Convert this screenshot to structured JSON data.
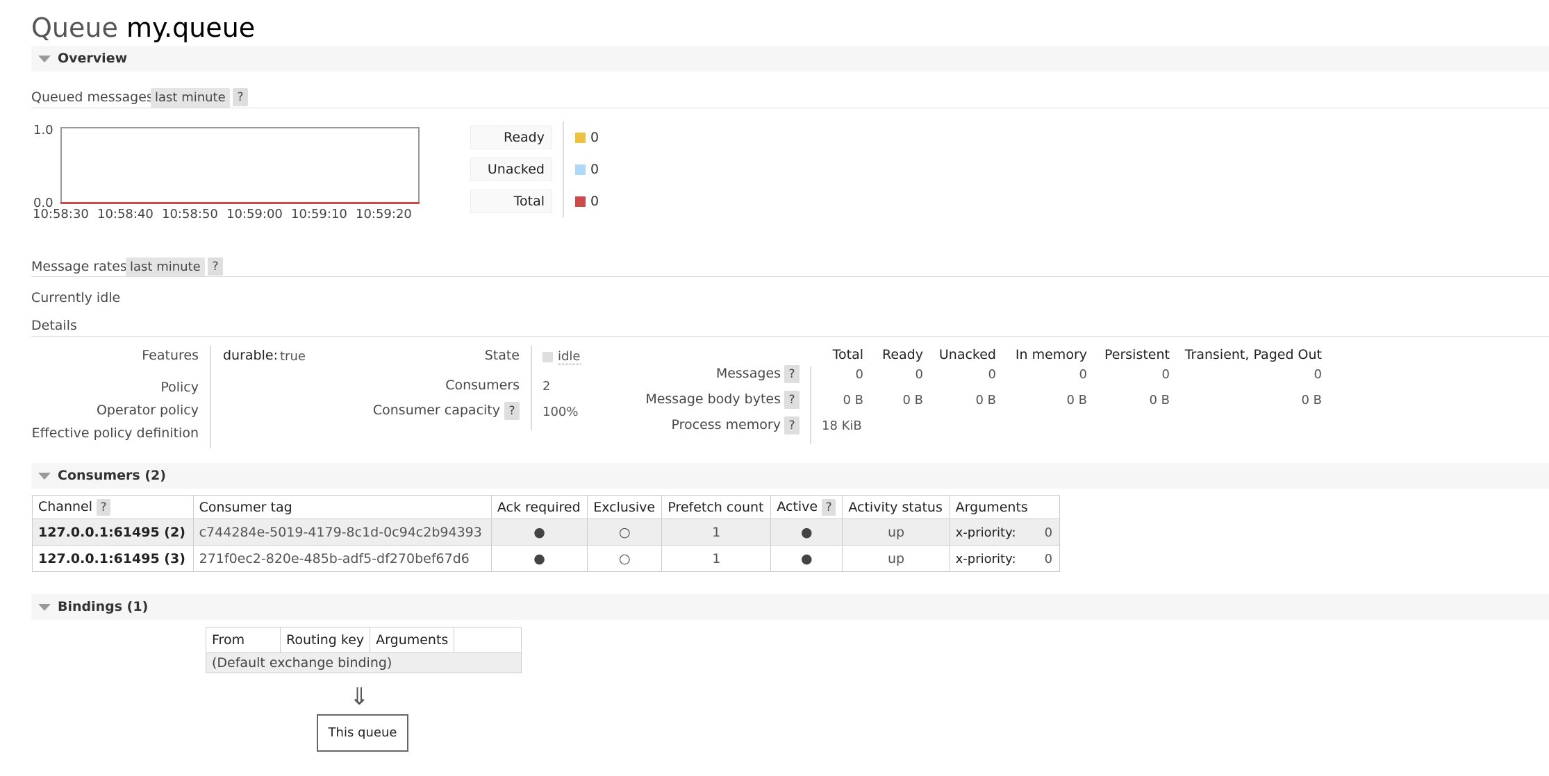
{
  "page": {
    "title_prefix": "Queue",
    "title_name": "my.queue"
  },
  "overview": {
    "section_title": "Overview",
    "queued_label": "Queued messages",
    "range_pill": "last minute",
    "help": "?",
    "chart_data": {
      "type": "line",
      "title": "",
      "x": [
        "10:58:30",
        "10:58:40",
        "10:58:50",
        "10:59:00",
        "10:59:10",
        "10:59:20"
      ],
      "series": [
        {
          "name": "Ready",
          "values": [
            0,
            0,
            0,
            0,
            0,
            0
          ],
          "color": "#edc240"
        },
        {
          "name": "Unacked",
          "values": [
            0,
            0,
            0,
            0,
            0,
            0
          ],
          "color": "#afd8f8"
        },
        {
          "name": "Total",
          "values": [
            0,
            0,
            0,
            0,
            0,
            0
          ],
          "color": "#cb4b4b"
        }
      ],
      "y_ticks": [
        "1.0",
        "0.0"
      ],
      "ylim": [
        0,
        1
      ],
      "grid": false,
      "legend_placement": "right"
    },
    "legend": [
      {
        "label": "Ready",
        "value": "0",
        "color": "#edc240"
      },
      {
        "label": "Unacked",
        "value": "0",
        "color": "#afd8f8"
      },
      {
        "label": "Total",
        "value": "0",
        "color": "#cb4b4b"
      }
    ],
    "rates_label": "Message rates",
    "rates_pill": "last minute",
    "idle_text": "Currently idle",
    "details_label": "Details"
  },
  "details": {
    "features_label": "Features",
    "features_key": "durable:",
    "features_value": "true",
    "policy_label": "Policy",
    "operator_policy_label": "Operator policy",
    "effective_policy_label": "Effective policy definition",
    "state_label": "State",
    "state_value": "idle",
    "consumers_label": "Consumers",
    "consumers_value": "2",
    "capacity_label": "Consumer capacity",
    "capacity_value": "100%",
    "columns": [
      "Total",
      "Ready",
      "Unacked",
      "In memory",
      "Persistent",
      "Transient, Paged Out"
    ],
    "messages_label": "Messages",
    "messages_values": [
      "0",
      "0",
      "0",
      "0",
      "0",
      "0"
    ],
    "body_bytes_label": "Message body bytes",
    "body_bytes_values": [
      "0 B",
      "0 B",
      "0 B",
      "0 B",
      "0 B",
      "0 B"
    ],
    "process_memory_label": "Process memory",
    "process_memory_value": "18 KiB"
  },
  "consumers": {
    "section_title": "Consumers (2)",
    "headers": [
      "Channel",
      "Consumer tag",
      "Ack required",
      "Exclusive",
      "Prefetch count",
      "Active",
      "Activity status",
      "Arguments"
    ],
    "rows": [
      {
        "channel": "127.0.0.1:61495 (2)",
        "tag": "c744284e-5019-4179-8c1d-0c94c2b94393",
        "ack": "●",
        "exclusive": "○",
        "prefetch": "1",
        "active": "●",
        "status": "up",
        "arg_key": "x-priority:",
        "arg_val": "0"
      },
      {
        "channel": "127.0.0.1:61495 (3)",
        "tag": "271f0ec2-820e-485b-adf5-df270bef67d6",
        "ack": "●",
        "exclusive": "○",
        "prefetch": "1",
        "active": "●",
        "status": "up",
        "arg_key": "x-priority:",
        "arg_val": "0"
      }
    ]
  },
  "bindings": {
    "section_title": "Bindings (1)",
    "headers": [
      "From",
      "Routing key",
      "Arguments",
      ""
    ],
    "default_row": "(Default exchange binding)",
    "arrow": "⇓",
    "this_queue": "This queue"
  }
}
